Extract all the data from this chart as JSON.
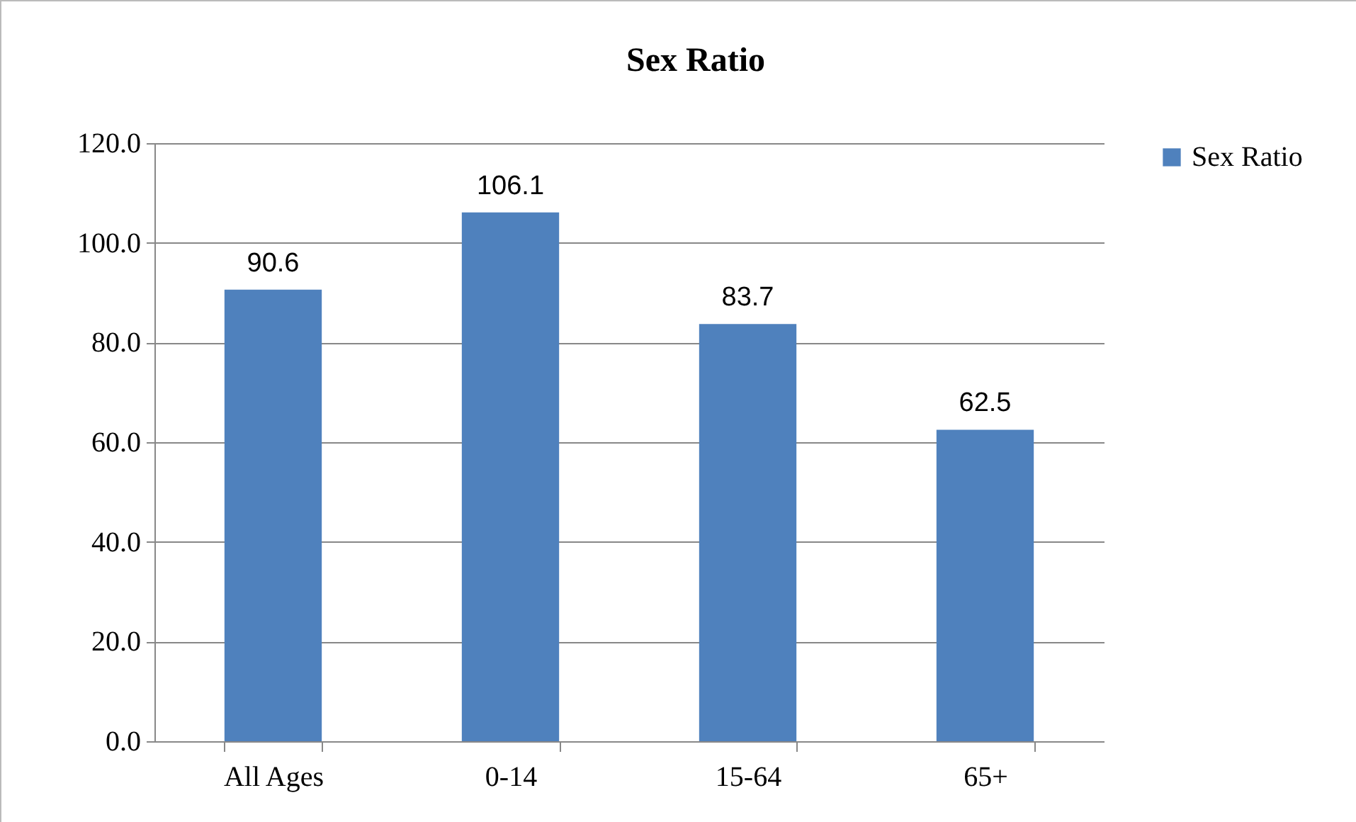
{
  "chart_data": {
    "type": "bar",
    "title": "Sex Ratio",
    "categories": [
      "All Ages",
      "0-14",
      "15-64",
      "65+"
    ],
    "series": [
      {
        "name": "Sex Ratio",
        "color": "#4f81bd",
        "values": [
          90.6,
          106.1,
          83.7,
          62.5
        ]
      }
    ],
    "ylim": [
      0,
      120
    ],
    "yticks": [
      {
        "value": 0,
        "label": "0.0"
      },
      {
        "value": 20,
        "label": "20.0"
      },
      {
        "value": 40,
        "label": "40.0"
      },
      {
        "value": 60,
        "label": "60.0"
      },
      {
        "value": 80,
        "label": "80.0"
      },
      {
        "value": 100,
        "label": "100.0"
      },
      {
        "value": 120,
        "label": "120.0"
      }
    ],
    "grid": "y",
    "legend": "right",
    "data_labels": true
  }
}
